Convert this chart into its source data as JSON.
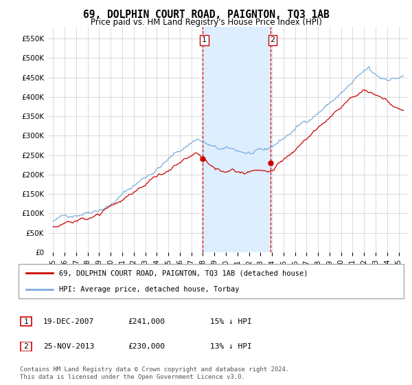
{
  "title": "69, DOLPHIN COURT ROAD, PAIGNTON, TQ3 1AB",
  "subtitle": "Price paid vs. HM Land Registry's House Price Index (HPI)",
  "ylabel_ticks": [
    "£0",
    "£50K",
    "£100K",
    "£150K",
    "£200K",
    "£250K",
    "£300K",
    "£350K",
    "£400K",
    "£450K",
    "£500K",
    "£550K"
  ],
  "ytick_values": [
    0,
    50000,
    100000,
    150000,
    200000,
    250000,
    300000,
    350000,
    400000,
    450000,
    500000,
    550000
  ],
  "ylim": [
    0,
    580000
  ],
  "sale1_price": 241000,
  "sale1_label": "1",
  "sale1_x": 2007.97,
  "sale2_price": 230000,
  "sale2_label": "2",
  "sale2_x": 2013.9,
  "red_line_color": "#cc0000",
  "blue_line_color": "#7aaddb",
  "highlight_fill": "#ddeeff",
  "highlight_border": "#cc0000",
  "legend_label_red": "69, DOLPHIN COURT ROAD, PAIGNTON, TQ3 1AB (detached house)",
  "legend_label_blue": "HPI: Average price, detached house, Torbay",
  "footnote": "Contains HM Land Registry data © Crown copyright and database right 2024.\nThis data is licensed under the Open Government Licence v3.0.",
  "table_row1": [
    "1",
    "19-DEC-2007",
    "£241,000",
    "15% ↓ HPI"
  ],
  "table_row2": [
    "2",
    "25-NOV-2013",
    "£230,000",
    "13% ↓ HPI"
  ]
}
